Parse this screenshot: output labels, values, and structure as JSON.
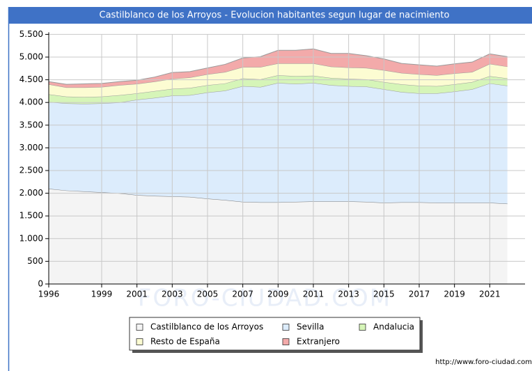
{
  "chart_data": {
    "type": "stacked_area",
    "title": "Castilblanco de los Arroyos - Evolucion habitantes segun lugar de nacimiento",
    "watermark": "FORO-CIUDAD.COM",
    "source": "http://www.foro-ciudad.com",
    "x": [
      1996,
      1997,
      1998,
      1999,
      2000,
      2001,
      2002,
      2003,
      2004,
      2005,
      2006,
      2007,
      2008,
      2009,
      2010,
      2011,
      2012,
      2013,
      2014,
      2015,
      2016,
      2017,
      2018,
      2019,
      2020,
      2021,
      2022
    ],
    "xlim": [
      1996,
      2023
    ],
    "xticks": [
      1996,
      1999,
      2001,
      2003,
      2005,
      2007,
      2009,
      2011,
      2013,
      2015,
      2017,
      2019,
      2021
    ],
    "ylim": [
      0,
      5500
    ],
    "yticks": [
      0,
      500,
      {
        "value": 1000,
        "label": "1.000"
      },
      {
        "value": 1500,
        "label": "1.500"
      },
      {
        "value": 2000,
        "label": "2.000"
      },
      {
        "value": 2500,
        "label": "2.500"
      },
      {
        "value": 3000,
        "label": "3.000"
      },
      {
        "value": 3500,
        "label": "3.500"
      },
      {
        "value": 4000,
        "label": "4.000"
      },
      {
        "value": 4500,
        "label": "4.500"
      },
      {
        "value": 5000,
        "label": "5.000"
      },
      {
        "value": 5500,
        "label": "5.500"
      }
    ],
    "grid": true,
    "series": [
      {
        "name": "Castilblanco de los Arroyos",
        "color": "#f4f4f4",
        "values": [
          2100,
          2060,
          2040,
          2020,
          2000,
          1960,
          1940,
          1930,
          1920,
          1880,
          1850,
          1810,
          1800,
          1800,
          1810,
          1820,
          1820,
          1820,
          1810,
          1790,
          1800,
          1800,
          1790,
          1790,
          1790,
          1790,
          1770
        ]
      },
      {
        "name": "Sevilla",
        "color": "#dcecfc",
        "values": [
          1910,
          1920,
          1930,
          1960,
          2000,
          2100,
          2160,
          2220,
          2240,
          2340,
          2410,
          2550,
          2540,
          2630,
          2600,
          2610,
          2560,
          2540,
          2540,
          2500,
          2430,
          2400,
          2410,
          2450,
          2500,
          2630,
          2600
        ]
      },
      {
        "name": "Andalucia",
        "color": "#d6f5b8",
        "values": [
          170,
          150,
          150,
          150,
          160,
          140,
          150,
          150,
          160,
          160,
          160,
          170,
          170,
          170,
          170,
          160,
          160,
          160,
          160,
          160,
          170,
          170,
          160,
          160,
          160,
          160,
          160
        ]
      },
      {
        "name": "Resto de España",
        "color": "#fcfcd2",
        "values": [
          220,
          200,
          210,
          210,
          220,
          210,
          210,
          220,
          230,
          240,
          250,
          250,
          270,
          260,
          280,
          270,
          250,
          250,
          250,
          260,
          250,
          250,
          240,
          240,
          220,
          270,
          260
        ]
      },
      {
        "name": "Extranjero",
        "color": "#f3aaaa",
        "values": [
          60,
          70,
          80,
          80,
          80,
          80,
          100,
          140,
          130,
          140,
          170,
          200,
          230,
          290,
          290,
          320,
          290,
          310,
          270,
          250,
          210,
          210,
          200,
          210,
          220,
          220,
          220
        ]
      }
    ]
  }
}
